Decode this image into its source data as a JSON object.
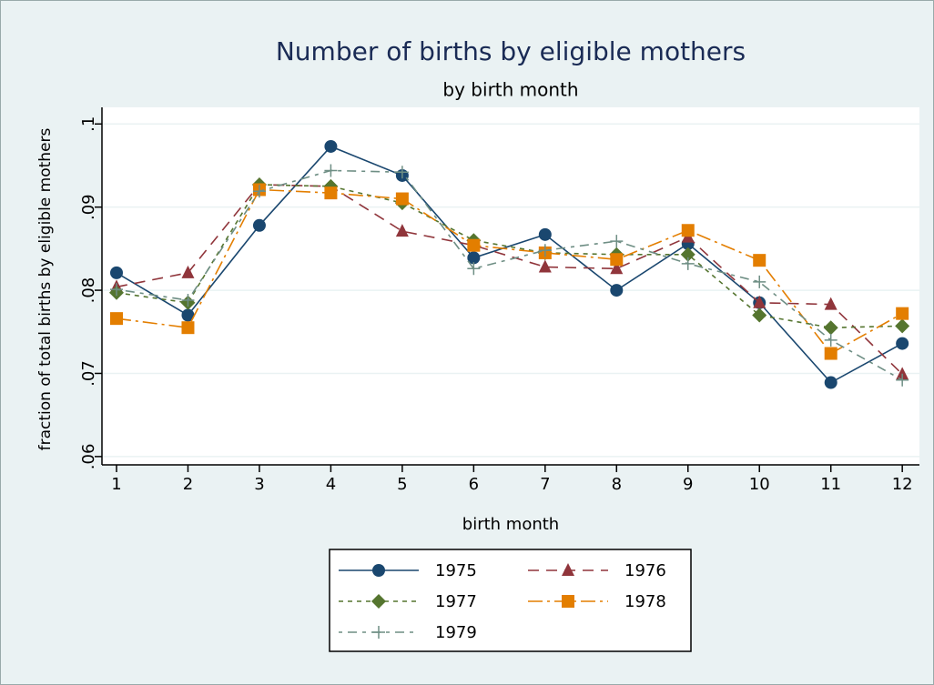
{
  "chart_data": {
    "type": "line",
    "title": "Number of births by eligible mothers",
    "subtitle": "by birth month",
    "x_label": "birth month",
    "y_label": "fraction of total births by eligible mothers",
    "x": [
      1,
      2,
      3,
      4,
      5,
      6,
      7,
      8,
      9,
      10,
      11,
      12
    ],
    "xlim": [
      0.796,
      12.24
    ],
    "xticks": [
      1,
      2,
      3,
      4,
      5,
      6,
      7,
      8,
      9,
      10,
      11,
      12
    ],
    "ylim": [
      0.059,
      0.102
    ],
    "yticks": [
      {
        "value": 0.06,
        "label": ".06"
      },
      {
        "value": 0.07,
        "label": ".07"
      },
      {
        "value": 0.08,
        "label": ".08"
      },
      {
        "value": 0.09,
        "label": ".09"
      },
      {
        "value": 0.1,
        "label": ".1"
      }
    ],
    "grid": true,
    "legend": "bottom",
    "series": [
      {
        "name": "1975",
        "color": "#1a476f",
        "marker": "circle",
        "line": "solid",
        "values": [
          0.0821,
          0.077,
          0.0878,
          0.0973,
          0.0938,
          0.0839,
          0.0867,
          0.08,
          0.0856,
          0.0785,
          0.0689,
          0.0736
        ]
      },
      {
        "name": "1976",
        "color": "#90353b",
        "marker": "triangle",
        "line": "dash",
        "values": [
          0.0804,
          0.0821,
          0.0927,
          0.0925,
          0.0871,
          0.0854,
          0.0828,
          0.0826,
          0.0864,
          0.0785,
          0.0783,
          0.0699
        ]
      },
      {
        "name": "1977",
        "color": "#55752f",
        "marker": "diamond",
        "line": "shortdash",
        "values": [
          0.0797,
          0.0785,
          0.0927,
          0.0925,
          0.0905,
          0.086,
          0.0845,
          0.0843,
          0.0843,
          0.077,
          0.0755,
          0.0757
        ]
      },
      {
        "name": "1978",
        "color": "#e37e00",
        "marker": "square",
        "line": "longdash_dot",
        "values": [
          0.0766,
          0.0755,
          0.0921,
          0.0917,
          0.091,
          0.0854,
          0.0845,
          0.0837,
          0.0872,
          0.0836,
          0.0724,
          0.0772
        ]
      },
      {
        "name": "1979",
        "color": "#6e8e84",
        "marker": "plus",
        "line": "dash_dot",
        "values": [
          0.0801,
          0.0788,
          0.0919,
          0.0944,
          0.0942,
          0.0826,
          0.0848,
          0.0859,
          0.0832,
          0.081,
          0.074,
          0.0692
        ]
      }
    ]
  }
}
